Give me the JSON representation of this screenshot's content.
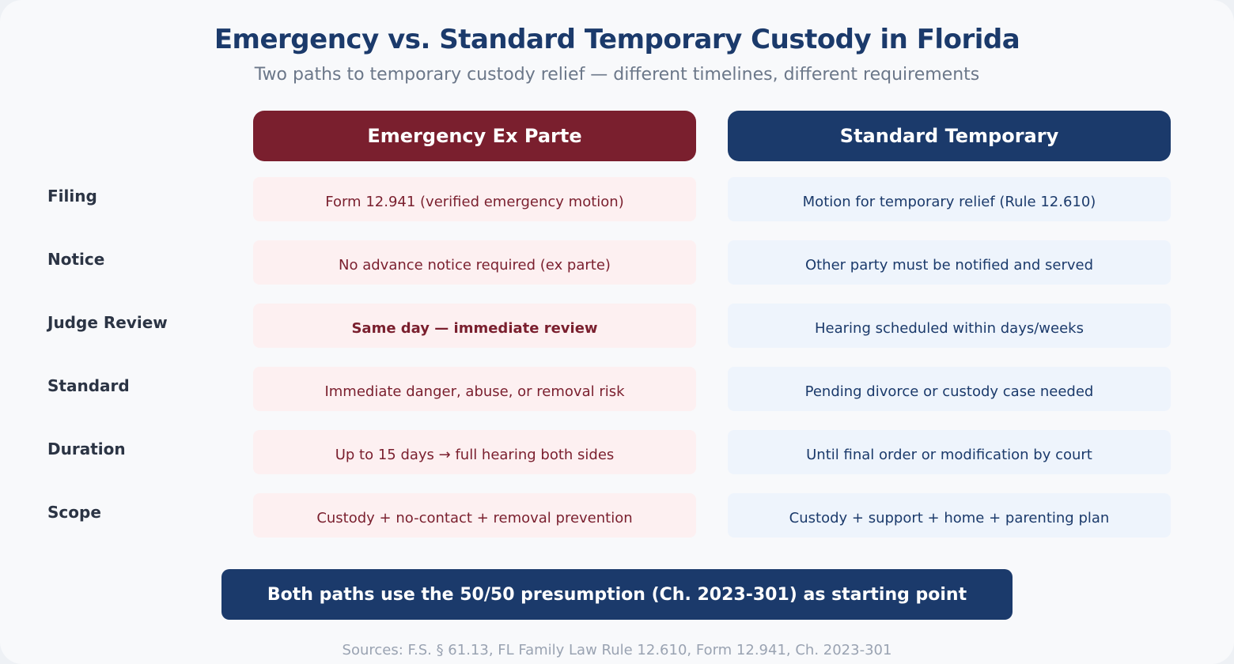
{
  "title": "Emergency vs. Standard Temporary Custody in Florida",
  "subtitle": "Two paths to temporary custody relief — different timelines, different requirements",
  "columns": {
    "emergency": "Emergency Ex Parte",
    "standard": "Standard Temporary"
  },
  "colors": {
    "emergency": "#7a1f2e",
    "standard": "#1b3a6b"
  },
  "rows": [
    {
      "label": "Filing",
      "emergency": "Form 12.941 (verified emergency motion)",
      "standard": "Motion for temporary relief (Rule 12.610)"
    },
    {
      "label": "Notice",
      "emergency": "No advance notice required (ex parte)",
      "standard": "Other party must be notified and served"
    },
    {
      "label": "Judge Review",
      "emergency": "Same day — immediate review",
      "standard": "Hearing scheduled within days/weeks"
    },
    {
      "label": "Standard",
      "emergency": "Immediate danger, abuse, or removal risk",
      "standard": "Pending divorce or custody case needed"
    },
    {
      "label": "Duration",
      "emergency": "Up to 15 days → full hearing both sides",
      "standard": "Until final order or modification by court"
    },
    {
      "label": "Scope",
      "emergency": "Custody + no-contact + removal prevention",
      "standard": "Custody + support + home + parenting plan"
    }
  ],
  "banner": "Both paths use the 50/50 presumption (Ch. 2023-301) as starting point",
  "sources": "Sources: F.S. § 61.13, FL Family Law Rule 12.610, Form 12.941, Ch. 2023-301"
}
